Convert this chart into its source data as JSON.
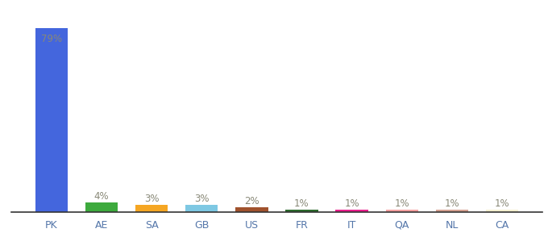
{
  "categories": [
    "PK",
    "AE",
    "SA",
    "GB",
    "US",
    "FR",
    "IT",
    "QA",
    "NL",
    "CA"
  ],
  "values": [
    79,
    4,
    3,
    3,
    2,
    1,
    1,
    1,
    1,
    1
  ],
  "labels": [
    "79%",
    "4%",
    "3%",
    "3%",
    "2%",
    "1%",
    "1%",
    "1%",
    "1%",
    "1%"
  ],
  "colors": [
    "#4466dd",
    "#3daa3d",
    "#f5a623",
    "#7ec8e3",
    "#a0522d",
    "#2d6a2d",
    "#e91e8c",
    "#f4a0a0",
    "#d4a090",
    "#f5f0d0"
  ],
  "ylim": [
    0,
    88
  ],
  "background_color": "#ffffff",
  "label_color": "#888877",
  "bar_width": 0.65,
  "label_fontsize": 8.5,
  "xtick_fontsize": 9,
  "xtick_color": "#5577aa"
}
